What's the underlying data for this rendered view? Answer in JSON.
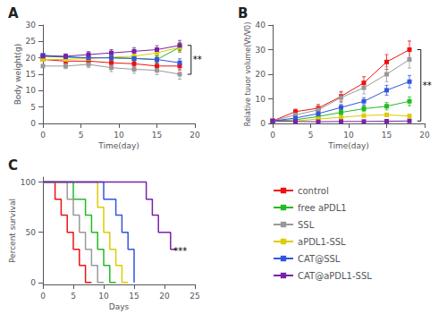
{
  "chart_data": [
    {
      "type": "line",
      "title": "A",
      "xlabel": "Time(day)",
      "ylabel": "Body weight(g)",
      "xlim": [
        0,
        20
      ],
      "ylim": [
        0,
        30
      ],
      "xticks": [
        0,
        5,
        10,
        15,
        20
      ],
      "yticks": [
        0,
        5,
        10,
        15,
        20,
        25,
        30
      ],
      "grid": false,
      "marker": "square",
      "x": [
        0,
        3,
        6,
        9,
        12,
        15,
        18
      ],
      "series": [
        {
          "name": "control",
          "color": "#EE1111",
          "values": [
            19.5,
            19.0,
            19.0,
            18.5,
            18.2,
            17.5,
            17.5
          ],
          "errors": [
            0.5,
            0.8,
            0.9,
            1.0,
            1.0,
            1.2,
            1.2
          ]
        },
        {
          "name": "free aPDL1",
          "color": "#22BB22",
          "values": [
            20.5,
            20.2,
            20.0,
            20.0,
            19.8,
            19.5,
            23.2
          ],
          "errors": [
            0.5,
            0.7,
            0.8,
            0.9,
            1.0,
            1.0,
            1.5
          ]
        },
        {
          "name": "SSL",
          "color": "#999999",
          "values": [
            17.5,
            17.5,
            18.0,
            17.0,
            16.5,
            16.2,
            15.0
          ],
          "errors": [
            0.5,
            0.8,
            1.0,
            1.2,
            1.2,
            1.3,
            1.5
          ]
        },
        {
          "name": "aPDL1-SSL",
          "color": "#DDCC00",
          "values": [
            19.5,
            19.5,
            19.8,
            20.2,
            20.5,
            21.5,
            23.2
          ],
          "errors": [
            0.5,
            0.7,
            0.8,
            0.9,
            1.0,
            1.2,
            1.3
          ]
        },
        {
          "name": "CAT@SSL",
          "color": "#3355DD",
          "values": [
            20.8,
            20.3,
            20.0,
            20.0,
            19.8,
            19.5,
            18.5
          ],
          "errors": [
            0.5,
            0.7,
            0.8,
            0.9,
            1.0,
            1.1,
            1.2
          ]
        },
        {
          "name": "CAT@aPDL1-SSL",
          "color": "#7722AA",
          "values": [
            20.5,
            20.5,
            21.0,
            21.5,
            22.0,
            22.5,
            23.8
          ],
          "errors": [
            0.5,
            0.7,
            0.9,
            1.0,
            1.1,
            1.2,
            1.5
          ]
        }
      ],
      "annotations": [
        {
          "text": "**",
          "x": 19.5,
          "y": [
            15.0,
            23.8
          ]
        }
      ]
    },
    {
      "type": "line",
      "title": "B",
      "xlabel": "Time(day)",
      "ylabel": "Relative tuuor volume(Vt/V0)",
      "xlim": [
        0,
        20
      ],
      "ylim": [
        0,
        40
      ],
      "xticks": [
        0,
        5,
        10,
        15,
        20
      ],
      "yticks": [
        0,
        10,
        20,
        30,
        40
      ],
      "grid": false,
      "marker": "square",
      "x": [
        0,
        3,
        6,
        9,
        12,
        15,
        18
      ],
      "series": [
        {
          "name": "control",
          "color": "#EE1111",
          "values": [
            1,
            4.8,
            6.2,
            11.0,
            16.5,
            25.0,
            30.0
          ],
          "errors": [
            0.1,
            1.0,
            1.5,
            2.0,
            2.5,
            3.0,
            3.5
          ]
        },
        {
          "name": "free aPDL1",
          "color": "#22BB22",
          "values": [
            1,
            1.5,
            2.8,
            4.5,
            6.0,
            7.0,
            9.0
          ],
          "errors": [
            0.1,
            0.5,
            0.8,
            1.0,
            1.2,
            1.5,
            1.8
          ]
        },
        {
          "name": "SSL",
          "color": "#999999",
          "values": [
            1,
            3.5,
            5.5,
            10.5,
            14.5,
            20.0,
            26.0
          ],
          "errors": [
            0.1,
            0.8,
            1.2,
            2.0,
            2.5,
            3.0,
            3.5
          ]
        },
        {
          "name": "aPDL1-SSL",
          "color": "#DDCC00",
          "values": [
            1,
            1.0,
            1.8,
            2.5,
            3.2,
            3.5,
            3.0
          ],
          "errors": [
            0.1,
            0.3,
            0.4,
            0.5,
            0.6,
            0.7,
            0.8
          ]
        },
        {
          "name": "CAT@SSL",
          "color": "#3355DD",
          "values": [
            1,
            2.2,
            4.0,
            6.5,
            9.0,
            13.5,
            17.0
          ],
          "errors": [
            0.1,
            0.5,
            0.8,
            1.2,
            1.5,
            2.0,
            2.5
          ]
        },
        {
          "name": "CAT@aPDL1-SSL",
          "color": "#7722AA",
          "values": [
            1,
            0.8,
            0.7,
            0.8,
            0.8,
            0.9,
            1.0
          ],
          "errors": [
            0.1,
            0.15,
            0.15,
            0.15,
            0.15,
            0.15,
            0.15
          ]
        }
      ],
      "annotations": [
        {
          "text": "**",
          "x": 19.5,
          "y": [
            1.0,
            30.0
          ]
        }
      ]
    },
    {
      "type": "step",
      "title": "C",
      "xlabel": "Days",
      "ylabel": "Percent survival",
      "xlim": [
        0,
        25
      ],
      "ylim": [
        -2,
        105
      ],
      "xticks": [
        0,
        5,
        10,
        15,
        20,
        25
      ],
      "yticks": [
        0,
        50,
        100
      ],
      "grid": false,
      "legend": "lower right",
      "series": [
        {
          "name": "control",
          "color": "#EE1111",
          "x": [
            0,
            2,
            3,
            4,
            5,
            6,
            7,
            8
          ],
          "values": [
            100,
            83,
            67,
            50,
            33,
            17,
            0,
            0
          ]
        },
        {
          "name": "free aPDL1",
          "color": "#22BB22",
          "x": [
            0,
            4,
            5,
            7,
            8,
            9,
            10,
            11,
            12
          ],
          "values": [
            100,
            100,
            83,
            67,
            50,
            33,
            17,
            0,
            0
          ]
        },
        {
          "name": "SSL",
          "color": "#999999",
          "x": [
            0,
            4,
            5,
            6,
            7,
            8,
            9,
            10
          ],
          "values": [
            100,
            83,
            67,
            50,
            33,
            17,
            0,
            0
          ]
        },
        {
          "name": "aPDL1-SSL",
          "color": "#DDCC00",
          "x": [
            0,
            8,
            9,
            10,
            11,
            12,
            13,
            14
          ],
          "values": [
            100,
            100,
            75,
            50,
            33,
            17,
            0,
            0
          ]
        },
        {
          "name": "CAT@SSL",
          "color": "#3355DD",
          "x": [
            0,
            8,
            10,
            12,
            13,
            14,
            15
          ],
          "values": [
            100,
            100,
            83,
            67,
            50,
            33,
            0
          ]
        },
        {
          "name": "CAT@aPDL1-SSL",
          "color": "#7722AA",
          "x": [
            0,
            15,
            17,
            18,
            19,
            21,
            22
          ],
          "values": [
            100,
            100,
            83,
            67,
            50,
            33,
            33
          ]
        }
      ],
      "annotations": [
        {
          "text": "***",
          "x": 21.5,
          "y": 31
        }
      ]
    }
  ]
}
